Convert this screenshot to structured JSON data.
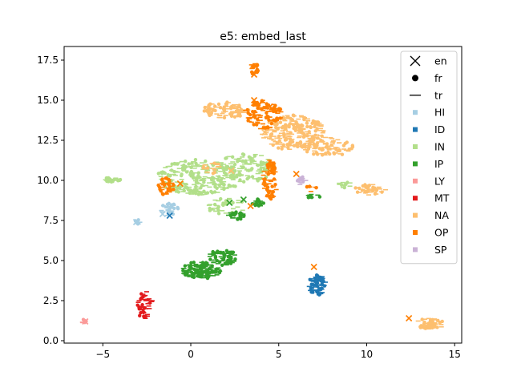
{
  "chart_data": {
    "type": "scatter",
    "title": "e5: embed_last",
    "xlabel": "",
    "ylabel": "",
    "xlim": [
      -7.2,
      15.4
    ],
    "ylim": [
      -0.15,
      18.35
    ],
    "xticks": [
      -5,
      0,
      5,
      10,
      15
    ],
    "yticks": [
      0.0,
      2.5,
      5.0,
      7.5,
      10.0,
      12.5,
      15.0,
      17.5
    ],
    "ytick_labels": [
      "0.0",
      "2.5",
      "5.0",
      "7.5",
      "10.0",
      "12.5",
      "15.0",
      "17.5"
    ],
    "grid": false,
    "legend_position": "upper-right",
    "legend_markers": [
      {
        "label": "en",
        "symbol": "x"
      },
      {
        "label": "fr",
        "symbol": "circle"
      },
      {
        "label": "tr",
        "symbol": "line"
      }
    ],
    "categories": [
      {
        "label": "HI",
        "color": "#a6cee3"
      },
      {
        "label": "ID",
        "color": "#1f78b4"
      },
      {
        "label": "IN",
        "color": "#b2df8a"
      },
      {
        "label": "IP",
        "color": "#33a02c"
      },
      {
        "label": "LY",
        "color": "#fb9a99"
      },
      {
        "label": "MT",
        "color": "#e31a1c"
      },
      {
        "label": "NA",
        "color": "#fdbf6f"
      },
      {
        "label": "OP",
        "color": "#ff7f00"
      },
      {
        "label": "SP",
        "color": "#cab2d6"
      }
    ],
    "clusters": [
      {
        "category": "IN",
        "cx": 0.5,
        "cy": 10.2,
        "rx": 2.4,
        "ry": 1.1,
        "n": 260
      },
      {
        "category": "IN",
        "cx": 3.2,
        "cy": 10.8,
        "rx": 1.6,
        "ry": 0.9,
        "n": 120
      },
      {
        "category": "IN",
        "cx": -4.5,
        "cy": 10.05,
        "rx": 0.5,
        "ry": 0.15,
        "n": 25
      },
      {
        "category": "IN",
        "cx": 2.0,
        "cy": 8.4,
        "rx": 1.2,
        "ry": 0.5,
        "n": 40
      },
      {
        "category": "IN",
        "cx": 8.8,
        "cy": 9.7,
        "rx": 0.5,
        "ry": 0.2,
        "n": 12
      },
      {
        "category": "NA",
        "cx": 2.0,
        "cy": 14.4,
        "rx": 1.3,
        "ry": 0.5,
        "n": 90
      },
      {
        "category": "NA",
        "cx": 5.8,
        "cy": 13.0,
        "rx": 1.8,
        "ry": 1.1,
        "n": 220
      },
      {
        "category": "NA",
        "cx": 7.8,
        "cy": 12.1,
        "rx": 1.5,
        "ry": 0.6,
        "n": 80
      },
      {
        "category": "NA",
        "cx": 10.2,
        "cy": 9.4,
        "rx": 0.9,
        "ry": 0.35,
        "n": 45
      },
      {
        "category": "NA",
        "cx": 13.6,
        "cy": 1.05,
        "rx": 0.8,
        "ry": 0.35,
        "n": 55
      },
      {
        "category": "NA",
        "cx": 1.2,
        "cy": 10.8,
        "rx": 0.5,
        "ry": 0.4,
        "n": 15
      },
      {
        "category": "OP",
        "cx": 4.1,
        "cy": 14.1,
        "rx": 1.1,
        "ry": 0.9,
        "n": 100
      },
      {
        "category": "OP",
        "cx": 3.6,
        "cy": 17.0,
        "rx": 0.25,
        "ry": 0.45,
        "n": 22
      },
      {
        "category": "OP",
        "cx": -1.4,
        "cy": 9.6,
        "rx": 0.45,
        "ry": 0.55,
        "n": 38
      },
      {
        "category": "OP",
        "cx": 4.5,
        "cy": 10.0,
        "rx": 0.4,
        "ry": 1.3,
        "n": 70
      },
      {
        "category": "OP",
        "cx": 6.9,
        "cy": 9.5,
        "rx": 0.35,
        "ry": 0.2,
        "n": 8
      },
      {
        "category": "IP",
        "cx": 0.6,
        "cy": 4.4,
        "rx": 1.1,
        "ry": 0.55,
        "n": 130
      },
      {
        "category": "IP",
        "cx": 1.8,
        "cy": 5.2,
        "rx": 0.8,
        "ry": 0.5,
        "n": 70
      },
      {
        "category": "IP",
        "cx": 2.6,
        "cy": 7.8,
        "rx": 0.5,
        "ry": 0.25,
        "n": 25
      },
      {
        "category": "IP",
        "cx": 3.8,
        "cy": 8.6,
        "rx": 0.4,
        "ry": 0.25,
        "n": 18
      },
      {
        "category": "IP",
        "cx": 6.9,
        "cy": 9.0,
        "rx": 0.45,
        "ry": 0.15,
        "n": 12
      },
      {
        "category": "ID",
        "cx": 7.2,
        "cy": 3.5,
        "rx": 0.5,
        "ry": 0.65,
        "n": 75
      },
      {
        "category": "MT",
        "cx": -2.6,
        "cy": 2.2,
        "rx": 0.45,
        "ry": 0.9,
        "n": 45
      },
      {
        "category": "HI",
        "cx": -1.2,
        "cy": 8.2,
        "rx": 0.5,
        "ry": 0.4,
        "n": 30
      },
      {
        "category": "HI",
        "cx": -3.0,
        "cy": 7.4,
        "rx": 0.2,
        "ry": 0.15,
        "n": 8
      },
      {
        "category": "LY",
        "cx": -6.0,
        "cy": 1.2,
        "rx": 0.2,
        "ry": 0.15,
        "n": 8
      },
      {
        "category": "SP",
        "cx": 6.3,
        "cy": 10.0,
        "rx": 0.25,
        "ry": 0.3,
        "n": 12
      }
    ],
    "highlighted_points": [
      {
        "category": "OP",
        "x": 3.6,
        "y": 16.6
      },
      {
        "category": "OP",
        "x": 3.6,
        "y": 15.0
      },
      {
        "category": "OP",
        "x": 4.5,
        "y": 14.6
      },
      {
        "category": "NA",
        "x": 4.2,
        "y": 13.0
      },
      {
        "category": "NA",
        "x": 2.3,
        "y": 10.6
      },
      {
        "category": "OP",
        "x": 4.5,
        "y": 10.6
      },
      {
        "category": "OP",
        "x": 6.0,
        "y": 10.4
      },
      {
        "category": "OP",
        "x": -0.6,
        "y": 9.8
      },
      {
        "category": "IP",
        "x": 2.2,
        "y": 8.6
      },
      {
        "category": "IP",
        "x": 3.0,
        "y": 8.8
      },
      {
        "category": "OP",
        "x": 3.4,
        "y": 8.4
      },
      {
        "category": "HI",
        "x": -1.6,
        "y": 7.9
      },
      {
        "category": "ID",
        "x": -1.2,
        "y": 7.8
      },
      {
        "category": "HI",
        "x": -3.1,
        "y": 7.4
      },
      {
        "category": "OP",
        "x": 7.0,
        "y": 4.6
      },
      {
        "category": "MT",
        "x": -2.7,
        "y": 1.9
      },
      {
        "category": "LY",
        "x": -6.0,
        "y": 1.2
      },
      {
        "category": "OP",
        "x": 12.4,
        "y": 1.4
      }
    ]
  }
}
